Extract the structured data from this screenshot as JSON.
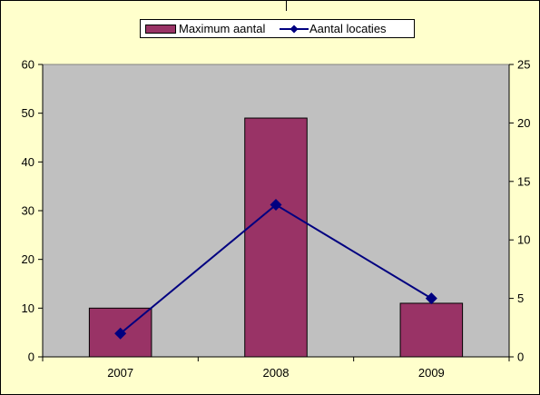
{
  "chart_data": {
    "type": "bar",
    "categories": [
      "2007",
      "2008",
      "2009"
    ],
    "series": [
      {
        "name": "Maximum aantal",
        "type": "bar",
        "axis": "left",
        "values": [
          10,
          49,
          11
        ],
        "color": "#993366"
      },
      {
        "name": "Aantal locaties",
        "type": "line",
        "axis": "right",
        "values": [
          2,
          13,
          5
        ],
        "color": "#000080",
        "marker": "diamond"
      }
    ],
    "ylim_left": [
      0,
      60
    ],
    "yticks_left": [
      0,
      10,
      20,
      30,
      40,
      50,
      60
    ],
    "ylim_right": [
      0,
      25
    ],
    "yticks_right": [
      0,
      5,
      10,
      15,
      20,
      25
    ],
    "grid": false,
    "legend_position": "top-center",
    "colors": {
      "chart_background": "#ffffcc",
      "plot_background": "#c0c0c0",
      "bar_fill": "#993366",
      "line": "#000080"
    }
  }
}
